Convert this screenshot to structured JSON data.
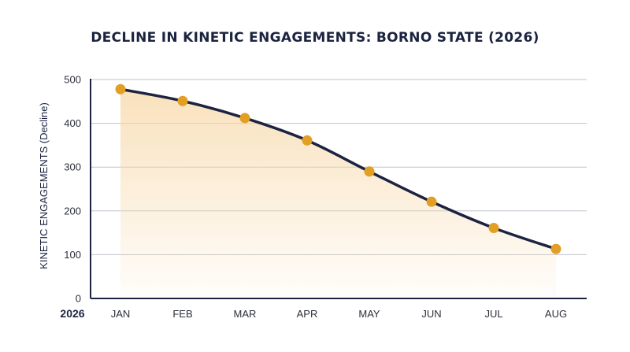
{
  "chart_data": {
    "type": "line",
    "title": "DECLINE IN KINETIC ENGAGEMENTS: BORNO STATE (2026)",
    "xlabel": "2026",
    "ylabel": "KINETIC ENGAGEMENTS (Decline)",
    "categories": [
      "JAN",
      "FEB",
      "MAR",
      "APR",
      "MAY",
      "JUN",
      "JUL",
      "AUG"
    ],
    "values": [
      478,
      451,
      412,
      361,
      290,
      221,
      161,
      113
    ],
    "yticks": [
      0,
      100,
      200,
      300,
      400,
      500
    ],
    "ylim": [
      0,
      500
    ],
    "grid": true,
    "area_fill": true,
    "colors": {
      "line": "#1b2340",
      "marker": "#e39e24",
      "fill": "#f7d7a6",
      "grid": "#bfc3cc"
    }
  }
}
